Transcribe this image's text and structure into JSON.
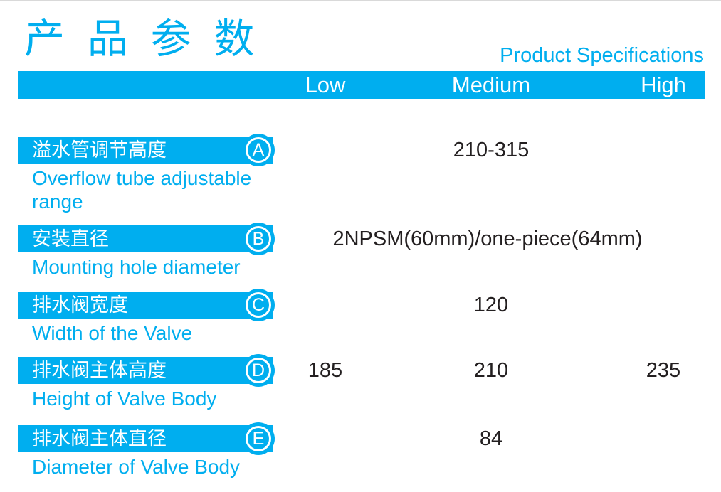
{
  "header": {
    "title_cn": "产 品 参 数",
    "title_en": "Product Specifications"
  },
  "columns": [
    "Low",
    "Medium",
    "High"
  ],
  "rows": [
    {
      "badge": "A",
      "label_cn": "溢水管调节高度",
      "label_en": "Overflow tube adjustable range",
      "values": {
        "medium": "210-315"
      }
    },
    {
      "badge": "B",
      "label_cn": "安装直径",
      "label_en": "Mounting hole diameter",
      "values": {
        "merged": "2NPSM(60mm)/one-piece(64mm)"
      }
    },
    {
      "badge": "C",
      "label_cn": "排水阀宽度",
      "label_en": "Width of the Valve",
      "values": {
        "medium": "120"
      }
    },
    {
      "badge": "D",
      "label_cn": "排水阀主体高度",
      "label_en": "Height of Valve Body",
      "values": {
        "low": "185",
        "medium": "210",
        "high": "235"
      }
    },
    {
      "badge": "E",
      "label_cn": "排水阀主体直径",
      "label_en": "Diameter of Valve Body",
      "values": {
        "medium": "84"
      }
    }
  ],
  "colors": {
    "accent": "#00AEEF",
    "header_text": "#FFFFFF",
    "value_text": "#231F20",
    "top_rule": "#D9D9D9"
  }
}
